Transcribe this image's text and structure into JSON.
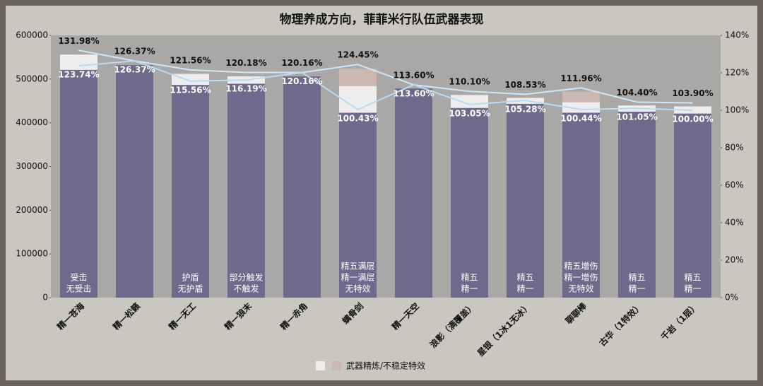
{
  "chart_data": {
    "type": "bar",
    "title": "物理养成方向，菲菲米行队伍武器表现",
    "categories": [
      "精一苍海",
      "精一松籁",
      "精一无工",
      "精一狼末",
      "精一赤角",
      "螭骨剑",
      "精一天空",
      "浪影（满覆盖）",
      "星银（1冰1无冰）",
      "聊聊棒",
      "古华（1特效）",
      "千岩（1层）"
    ],
    "series": [
      {
        "color": "#6d6a8b",
        "values": [
          521000,
          532000,
          486600,
          489300,
          506000,
          422900,
          478400,
          433900,
          443300,
          423000,
          425500,
          421100
        ]
      },
      {
        "color": "#eeecec",
        "values": [
          35000,
          0,
          25300,
          16800,
          0,
          61000,
          0,
          29700,
          13700,
          24000,
          14100,
          16400
        ]
      },
      {
        "color": "#cbb9b1",
        "values": [
          0,
          0,
          0,
          0,
          0,
          40000,
          0,
          0,
          0,
          24500,
          0,
          0
        ]
      }
    ],
    "lines": [
      {
        "color": "#cfe6f5",
        "axis": "y2",
        "values": [
          131.98,
          126.37,
          121.56,
          120.18,
          120.16,
          124.45,
          113.6,
          110.1,
          108.53,
          111.96,
          104.4,
          103.9
        ],
        "value_labels": [
          "131.98%",
          "126.37%",
          "121.56%",
          "120.18%",
          "120.16%",
          "124.45%",
          "113.60%",
          "110.10%",
          "108.53%",
          "111.96%",
          "104.40%",
          "103.90%"
        ]
      },
      {
        "color": "#b9dcf2",
        "axis": "y2",
        "values": [
          123.74,
          126.37,
          115.56,
          116.19,
          120.16,
          100.43,
          113.6,
          103.05,
          105.28,
          100.44,
          101.05,
          100.0
        ],
        "value_labels": [
          "123.74%",
          "126.37%",
          "115.56%",
          "116.19%",
          "120.16%",
          "100.43%",
          "113.60%",
          "103.05%",
          "105.28%",
          "100.44%",
          "101.05%",
          "100.00%"
        ]
      }
    ],
    "bar_notes": [
      [
        "受击",
        "无受击"
      ],
      null,
      [
        "护盾",
        "无护盾"
      ],
      [
        "部分触发",
        "不触发"
      ],
      null,
      [
        "精五满层",
        "精一满层",
        "无特效"
      ],
      null,
      [
        "精五",
        "精一"
      ],
      [
        "精五",
        "精一"
      ],
      [
        "精五增伤",
        "精一增伤",
        "无特效"
      ],
      [
        "精五",
        "精一"
      ],
      [
        "精五",
        "精一"
      ]
    ],
    "legend": "武器精炼/不稳定特效",
    "ylim": [
      0,
      600000
    ],
    "yticks": [
      0,
      100000,
      200000,
      300000,
      400000,
      500000,
      600000
    ],
    "y2lim": [
      0,
      140
    ],
    "y2ticks": [
      {
        "value": 0,
        "label": "0%"
      },
      {
        "value": 20,
        "label": "20%"
      },
      {
        "value": 40,
        "label": "40%"
      },
      {
        "value": 60,
        "label": "60%"
      },
      {
        "value": 80,
        "label": "80%"
      },
      {
        "value": 100,
        "label": "100%"
      },
      {
        "value": 120,
        "label": "120%"
      },
      {
        "value": 140,
        "label": "140%"
      }
    ]
  }
}
